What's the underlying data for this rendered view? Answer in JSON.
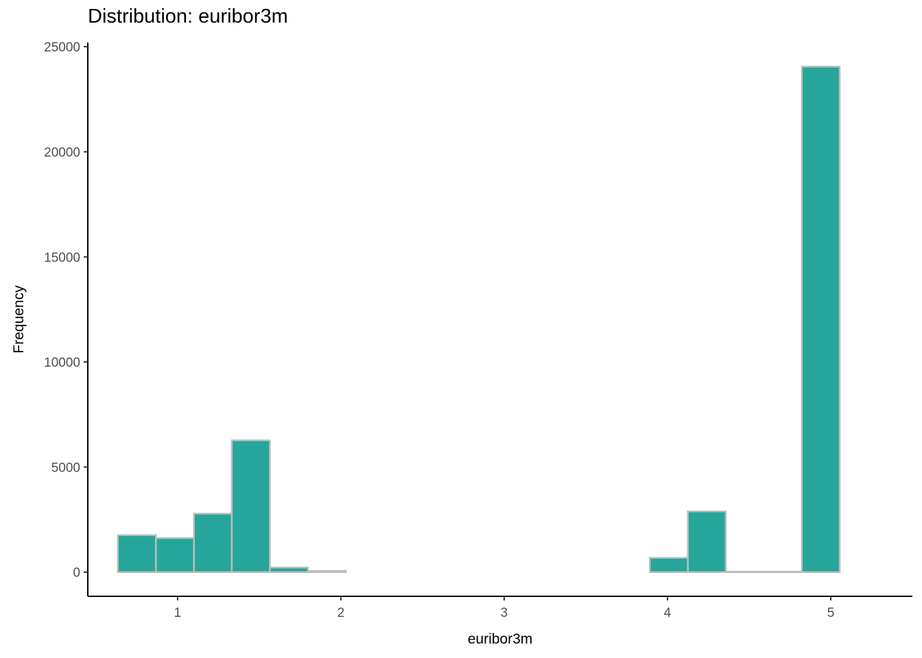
{
  "chart_data": {
    "type": "histogram",
    "title": "Distribution: euribor3m",
    "xlabel": "euribor3m",
    "ylabel": "Frequency",
    "xlim": [
      0.45,
      5.5
    ],
    "ylim": [
      -1150,
      25200
    ],
    "x_ticks": [
      1,
      2,
      3,
      4,
      5
    ],
    "y_ticks": [
      0,
      5000,
      10000,
      15000,
      20000,
      25000
    ],
    "bin_width": 0.2326,
    "bins": [
      {
        "start": 0.634,
        "end": 0.867,
        "count": 1760
      },
      {
        "start": 0.867,
        "end": 1.1,
        "count": 1620
      },
      {
        "start": 1.1,
        "end": 1.332,
        "count": 2780
      },
      {
        "start": 1.332,
        "end": 1.565,
        "count": 6270
      },
      {
        "start": 1.565,
        "end": 1.798,
        "count": 220
      },
      {
        "start": 1.798,
        "end": 2.03,
        "count": 60
      },
      {
        "start": 2.03,
        "end": 2.263,
        "count": 0
      },
      {
        "start": 2.263,
        "end": 2.496,
        "count": 0
      },
      {
        "start": 2.496,
        "end": 2.728,
        "count": 0
      },
      {
        "start": 2.728,
        "end": 2.961,
        "count": 0
      },
      {
        "start": 2.961,
        "end": 3.194,
        "count": 0
      },
      {
        "start": 3.194,
        "end": 3.427,
        "count": 0
      },
      {
        "start": 3.427,
        "end": 3.659,
        "count": 0
      },
      {
        "start": 3.659,
        "end": 3.892,
        "count": 0
      },
      {
        "start": 3.892,
        "end": 4.125,
        "count": 680
      },
      {
        "start": 4.125,
        "end": 4.357,
        "count": 2890
      },
      {
        "start": 4.357,
        "end": 4.59,
        "count": 20
      },
      {
        "start": 4.59,
        "end": 4.823,
        "count": 20
      },
      {
        "start": 4.823,
        "end": 5.055,
        "count": 24050
      },
      {
        "start": 5.055,
        "end": 5.288,
        "count": 0
      }
    ],
    "fill_color": "#26A69A",
    "edge_color": "#BDBDBD",
    "grid": false,
    "legend": "none"
  }
}
